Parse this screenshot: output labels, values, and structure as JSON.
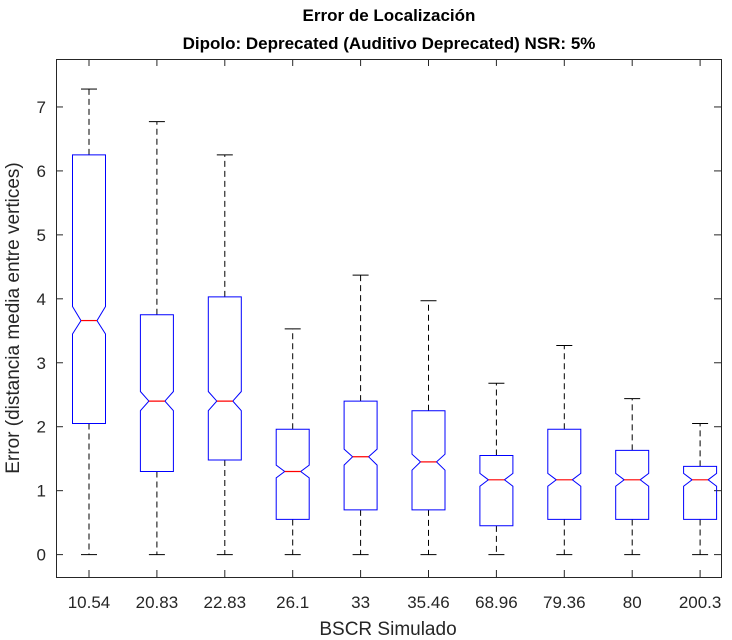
{
  "chart_data": {
    "type": "box",
    "title": "Error de Localización",
    "subtitle": "Dipolo: Deprecated (Auditivo Deprecated) NSR: 5%",
    "xlabel": "BSCR Simulado",
    "ylabel": "Error (distancia media entre vertices)",
    "ylim": [
      -0.35,
      7.75
    ],
    "yticks": [
      "0",
      "1",
      "2",
      "3",
      "4",
      "5",
      "6",
      "7"
    ],
    "notched": true,
    "grid": false,
    "categories": [
      "10.54",
      "20.83",
      "22.83",
      "26.1",
      "33",
      "35.46",
      "68.96",
      "79.36",
      "80",
      "200.3"
    ],
    "boxes": [
      {
        "whisker_low": 0,
        "q1": 2.05,
        "median": 3.66,
        "q3": 6.25,
        "whisker_high": 7.28,
        "notch_low": 3.45,
        "notch_high": 3.88
      },
      {
        "whisker_low": 0,
        "q1": 1.3,
        "median": 2.4,
        "q3": 3.75,
        "whisker_high": 6.77,
        "notch_low": 2.25,
        "notch_high": 2.55
      },
      {
        "whisker_low": 0,
        "q1": 1.48,
        "median": 2.4,
        "q3": 4.03,
        "whisker_high": 6.25,
        "notch_low": 2.25,
        "notch_high": 2.55
      },
      {
        "whisker_low": 0,
        "q1": 0.55,
        "median": 1.3,
        "q3": 1.96,
        "whisker_high": 3.53,
        "notch_low": 1.2,
        "notch_high": 1.4
      },
      {
        "whisker_low": 0,
        "q1": 0.7,
        "median": 1.53,
        "q3": 2.4,
        "whisker_high": 4.37,
        "notch_low": 1.4,
        "notch_high": 1.65
      },
      {
        "whisker_low": 0,
        "q1": 0.7,
        "median": 1.45,
        "q3": 2.25,
        "whisker_high": 3.97,
        "notch_low": 1.32,
        "notch_high": 1.57
      },
      {
        "whisker_low": 0,
        "q1": 0.45,
        "median": 1.17,
        "q3": 1.55,
        "whisker_high": 2.68,
        "notch_low": 1.07,
        "notch_high": 1.27
      },
      {
        "whisker_low": 0,
        "q1": 0.55,
        "median": 1.17,
        "q3": 1.96,
        "whisker_high": 3.27,
        "notch_low": 1.07,
        "notch_high": 1.27
      },
      {
        "whisker_low": 0,
        "q1": 0.55,
        "median": 1.17,
        "q3": 1.63,
        "whisker_high": 2.44,
        "notch_low": 1.07,
        "notch_high": 1.27
      },
      {
        "whisker_low": 0,
        "q1": 0.55,
        "median": 1.17,
        "q3": 1.38,
        "whisker_high": 2.05,
        "notch_low": 1.07,
        "notch_high": 1.27
      }
    ],
    "colors": {
      "box": "#0000ff",
      "median": "#ff0000",
      "whisker": "#000000",
      "axis": "#262626"
    }
  }
}
